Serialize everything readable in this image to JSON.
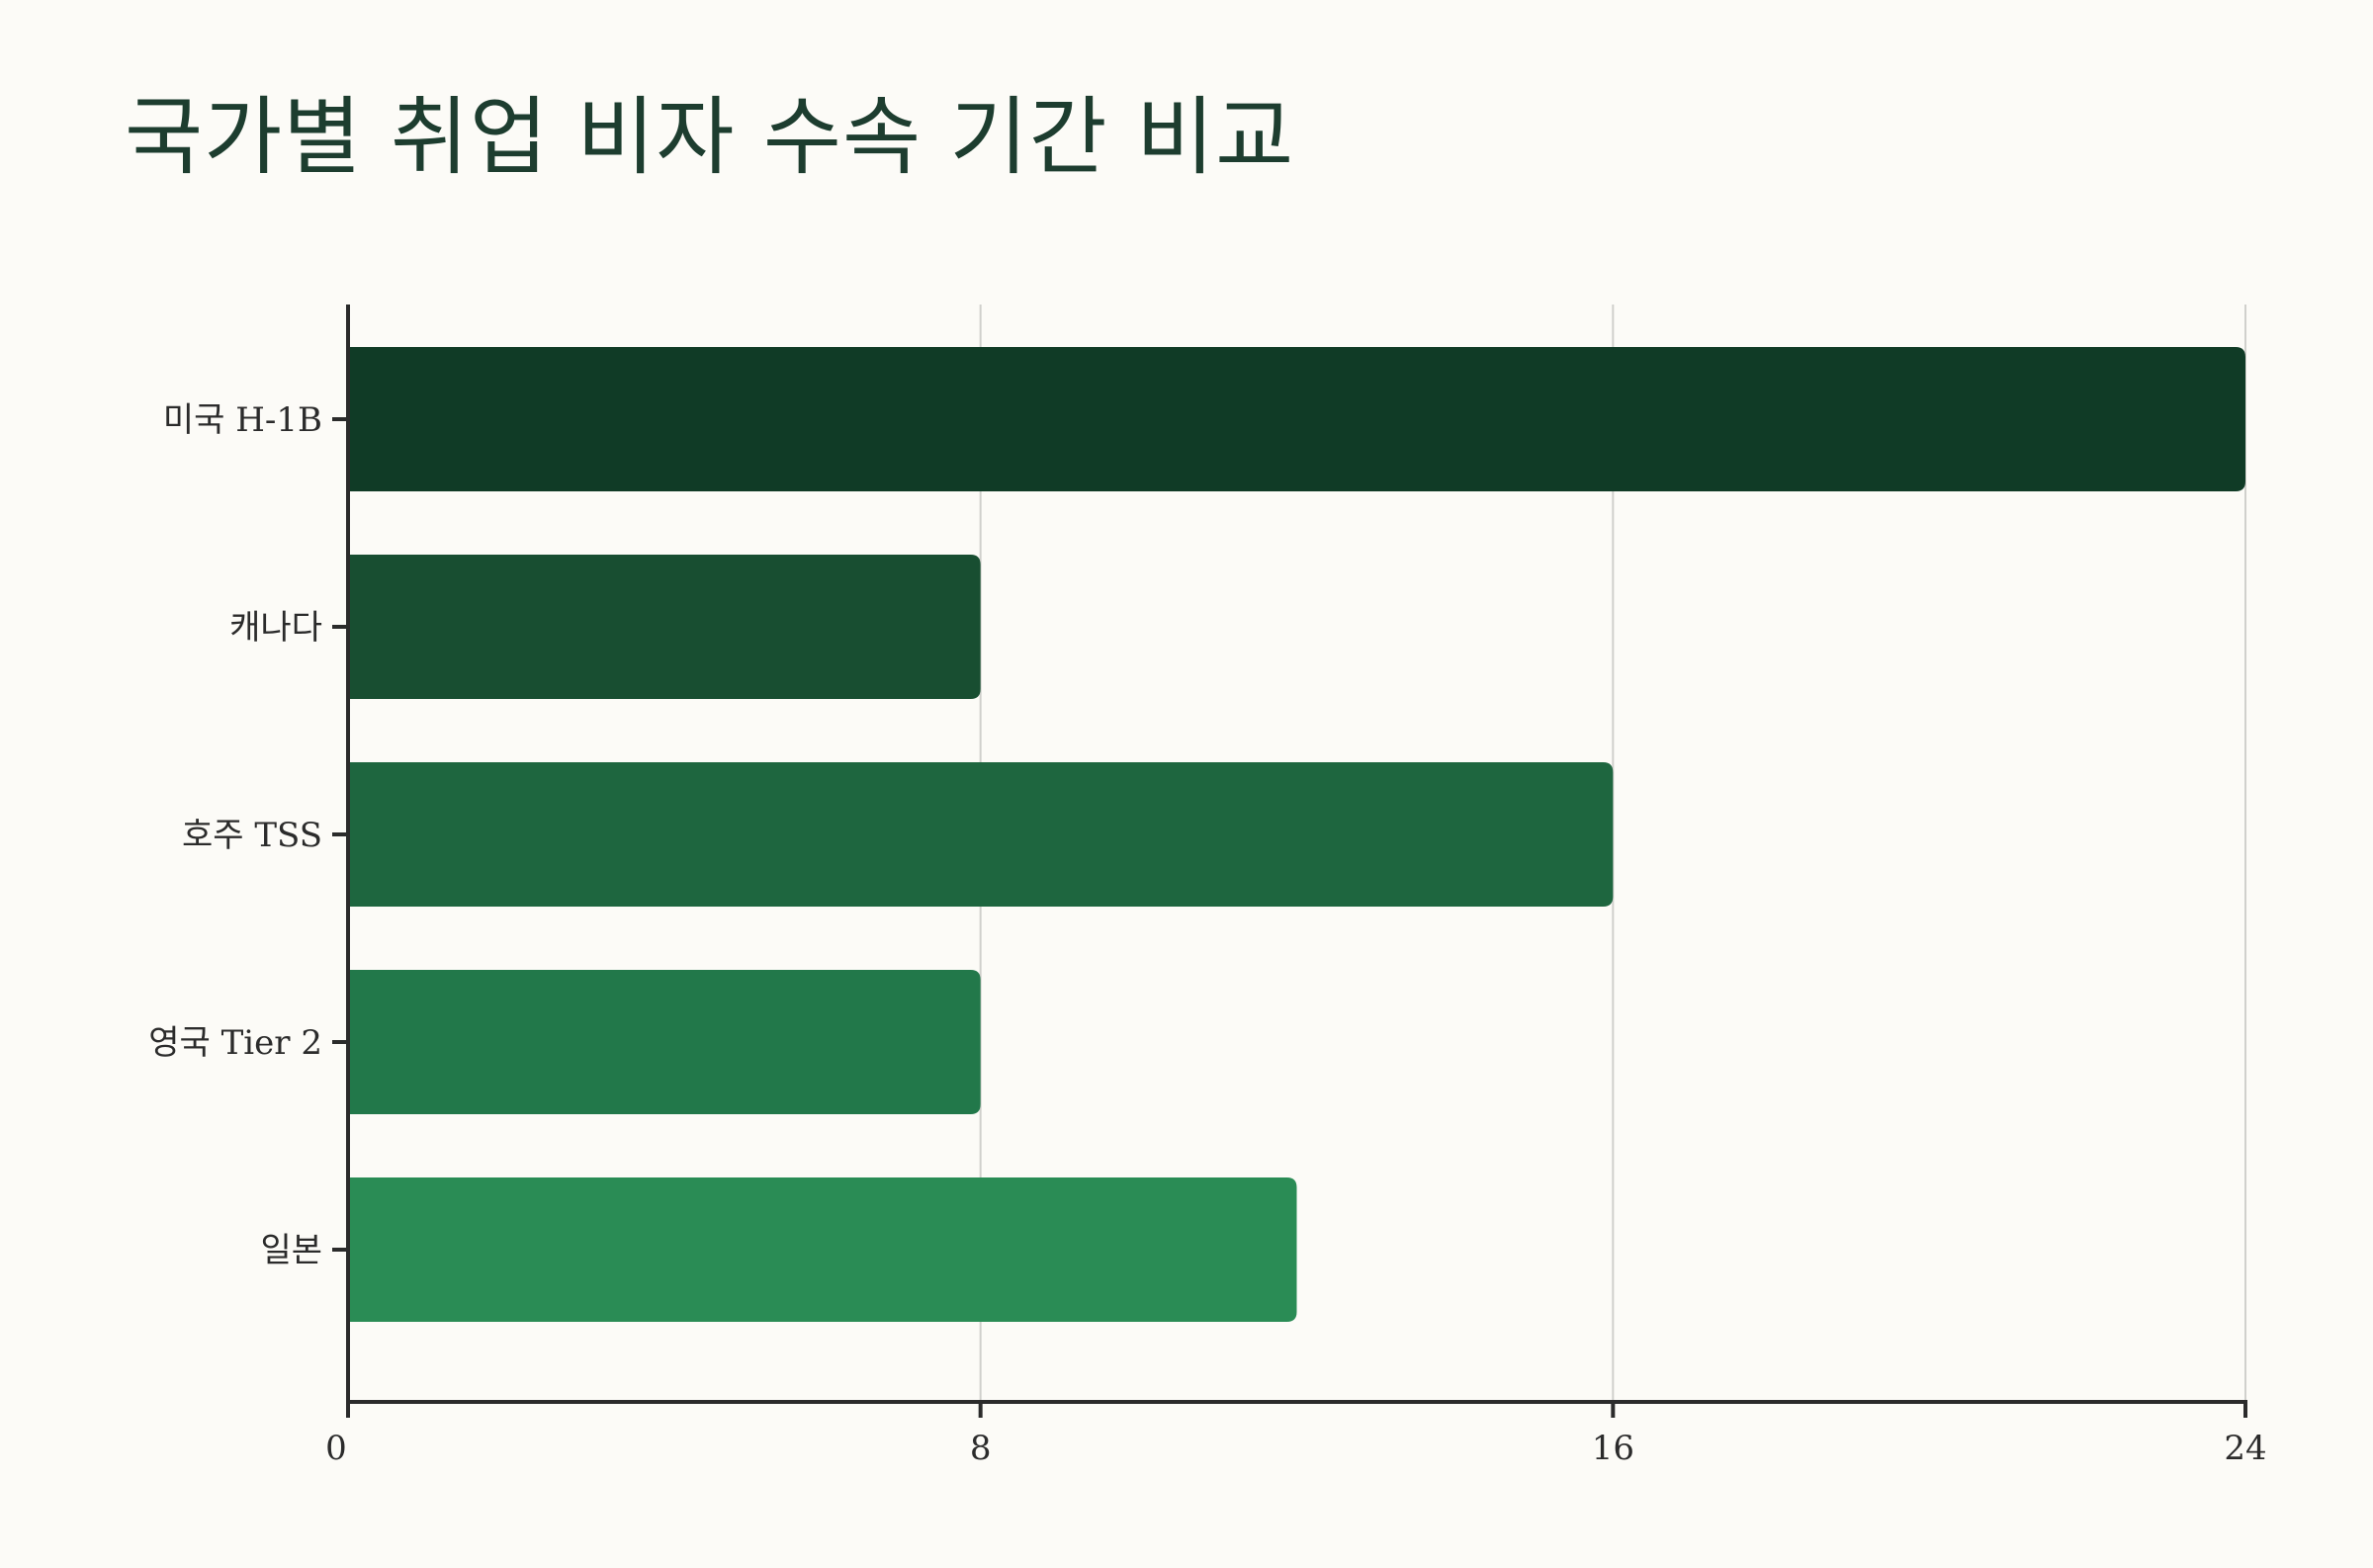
{
  "chart_data": {
    "type": "bar",
    "orientation": "horizontal",
    "title": "국가별 취업 비자 수속 기간 비교",
    "categories": [
      "미국 H-1B",
      "캐나다",
      "호주 TSS",
      "영국 Tier 2",
      "일본"
    ],
    "values": [
      24,
      8,
      16,
      8,
      12
    ],
    "xlim": [
      0,
      24
    ],
    "xticks": [
      "0",
      "8",
      "16",
      "24"
    ],
    "xlabel": "",
    "ylabel": "",
    "grid": "vertical",
    "legend": "none",
    "colors": [
      "#103b26",
      "#184e31",
      "#1e663f",
      "#22784a",
      "#2a8c55"
    ],
    "axis_color": "#2b2b2b",
    "grid_color": "#d0d0cc"
  }
}
